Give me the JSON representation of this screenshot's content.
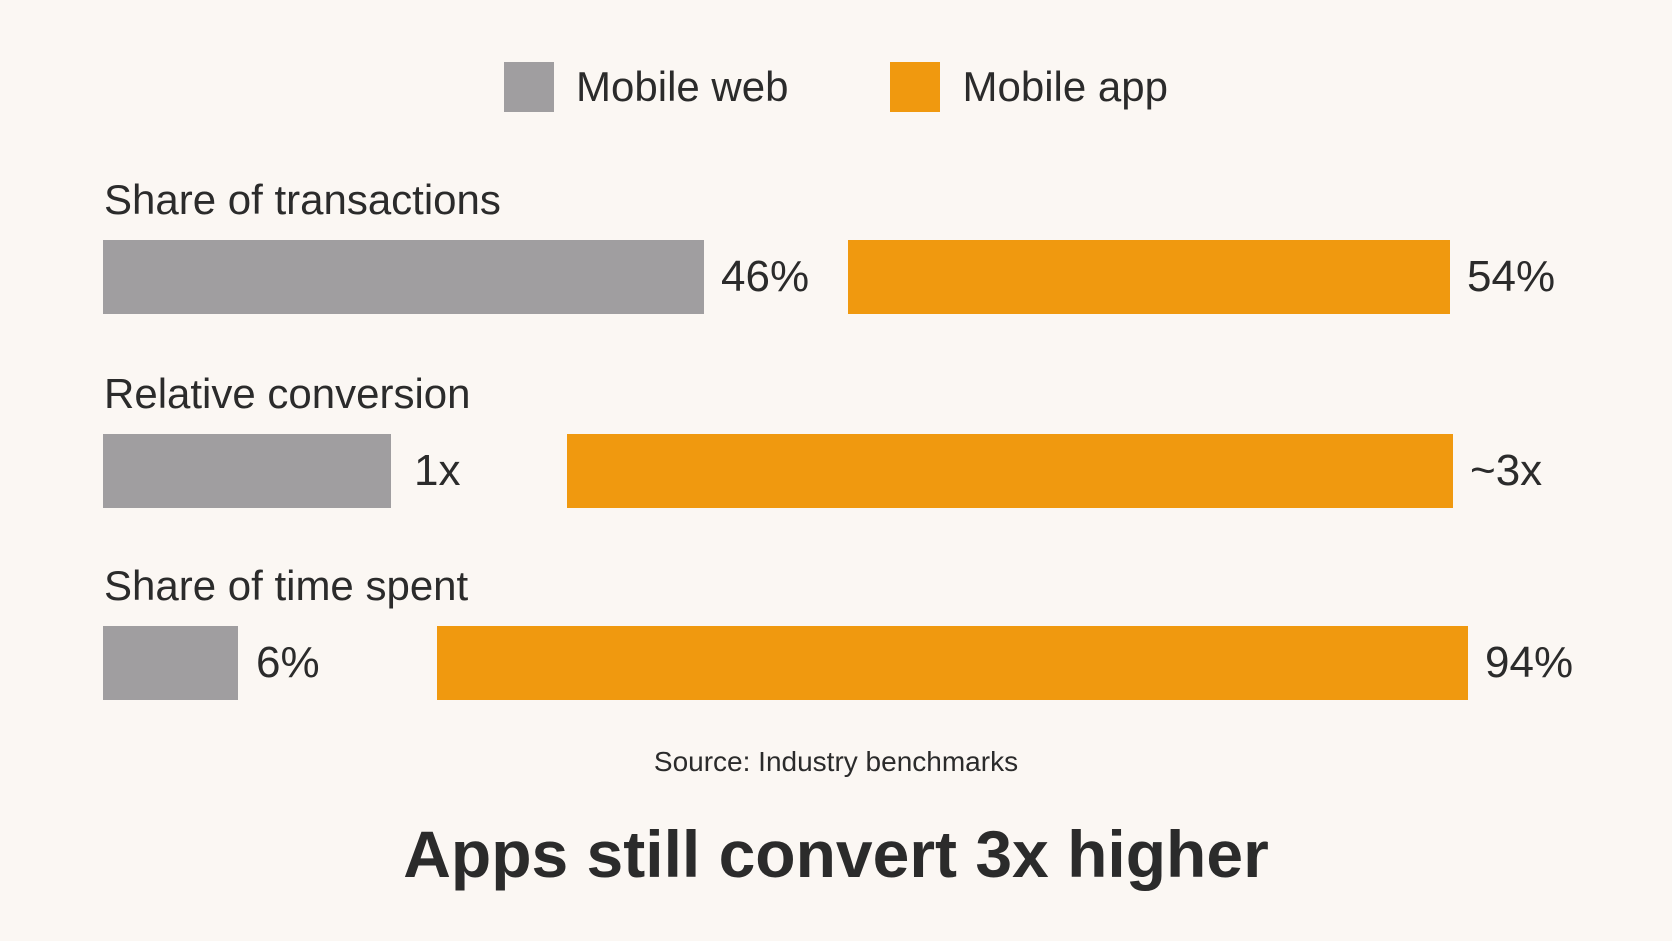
{
  "legend": {
    "web_label": "Mobile web",
    "app_label": "Mobile app"
  },
  "colors": {
    "web": "#a09ea0",
    "app": "#f0990f",
    "background": "#fbf7f3"
  },
  "chart_data": {
    "type": "bar",
    "orientation": "horizontal",
    "categories": [
      "Share of transactions",
      "Relative conversion",
      "Share of time spent"
    ],
    "series": [
      {
        "name": "Mobile web",
        "values": [
          46,
          1,
          6
        ],
        "labels": [
          "46%",
          "1x",
          "6%"
        ]
      },
      {
        "name": "Mobile app",
        "values": [
          54,
          3,
          94
        ],
        "labels": [
          "54%",
          "~3x",
          "94%"
        ]
      }
    ],
    "legend": "top-center",
    "grid": false
  },
  "source": "Source: Industry benchmarks",
  "headline": "Apps still convert 3x higher"
}
